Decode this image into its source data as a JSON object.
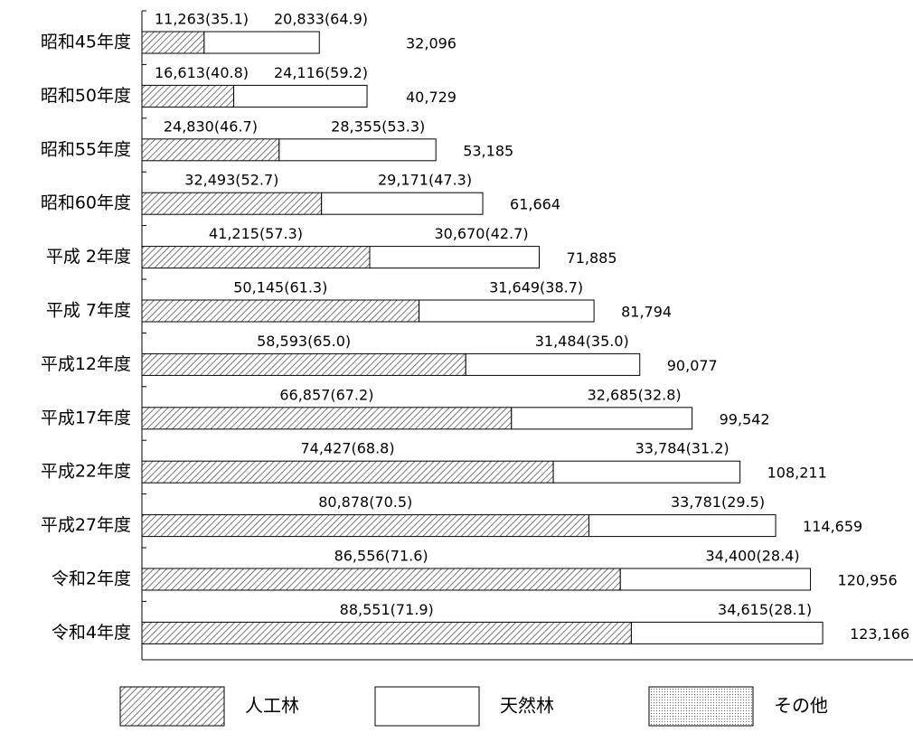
{
  "chart_data": {
    "type": "stacked-barh",
    "categories": [
      "昭和45年度",
      "昭和50年度",
      "昭和55年度",
      "昭和60年度",
      "平成 2年度",
      "平成 7年度",
      "平成12年度",
      "平成17年度",
      "平成22年度",
      "平成27年度",
      "令和2年度",
      "令和4年度"
    ],
    "series": [
      {
        "name": "人工林",
        "pattern": "hatch",
        "values": [
          11263,
          16613,
          24830,
          32493,
          41215,
          50145,
          58593,
          66857,
          74427,
          80878,
          86556,
          88551
        ],
        "value_labels": [
          "11,263(35.1)",
          "16,613(40.8)",
          "24,830(46.7)",
          "32,493(52.7)",
          "41,215(57.3)",
          "50,145(61.3)",
          "58,593(65.0)",
          "66,857(67.2)",
          "74,427(68.8)",
          "80,878(70.5)",
          "86,556(71.6)",
          "88,551(71.9)"
        ]
      },
      {
        "name": "天然林",
        "pattern": "none",
        "values": [
          20833,
          24116,
          28355,
          29171,
          30670,
          31649,
          31484,
          32685,
          33784,
          33781,
          34400,
          34615
        ],
        "value_labels": [
          "20,833(64.9)",
          "24,116(59.2)",
          "28,355(53.3)",
          "29,171(47.3)",
          "30,670(42.7)",
          "31,649(38.7)",
          "31,484(35.0)",
          "32,685(32.8)",
          "33,784(31.2)",
          "33,781(29.5)",
          "34,400(28.4)",
          "34,615(28.1)"
        ]
      },
      {
        "name": "その他",
        "pattern": "dots",
        "values": [
          null,
          null,
          null,
          null,
          null,
          null,
          null,
          null,
          null,
          null,
          null,
          null
        ]
      }
    ],
    "totals": {
      "values": [
        32096,
        40729,
        53185,
        61664,
        71885,
        81794,
        90077,
        99542,
        108211,
        114659,
        120956,
        123166
      ],
      "value_labels": [
        "32,096",
        "40,729",
        "53,185",
        "61,664",
        "71,885",
        "81,794",
        "90,077",
        "99,542",
        "108,211",
        "114,659",
        "120,956",
        "123,166"
      ]
    },
    "xlim": [
      0,
      140000
    ]
  }
}
